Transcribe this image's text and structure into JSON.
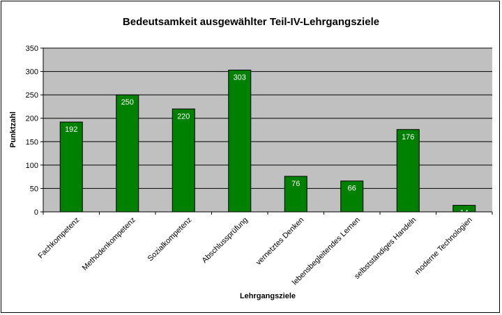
{
  "chart_data": {
    "type": "bar",
    "title": "Bedeutsamkeit ausgewählter Teil-IV-Lehrgangsziele",
    "xlabel": "Lehrgangsziele",
    "ylabel": "Punktzahl",
    "categories": [
      "Fachkompetenz",
      "Methodenkompetenz",
      "Sozialkompetenz",
      "Abschlussprüfung",
      "vernetztes Denken",
      "lebensbegleitendes Lernen",
      "selbstständiges Handeln",
      "moderne Technologien"
    ],
    "values": [
      192,
      250,
      220,
      303,
      76,
      66,
      176,
      14
    ],
    "ylim": [
      0,
      350
    ],
    "yticks": [
      0,
      50,
      100,
      150,
      200,
      250,
      300,
      350
    ],
    "grid": true,
    "legend": "none",
    "colors": {
      "bar": "#008000",
      "plot_background": "#c0c0c0",
      "gridline": "#000000",
      "data_label": "#ffffff"
    }
  }
}
